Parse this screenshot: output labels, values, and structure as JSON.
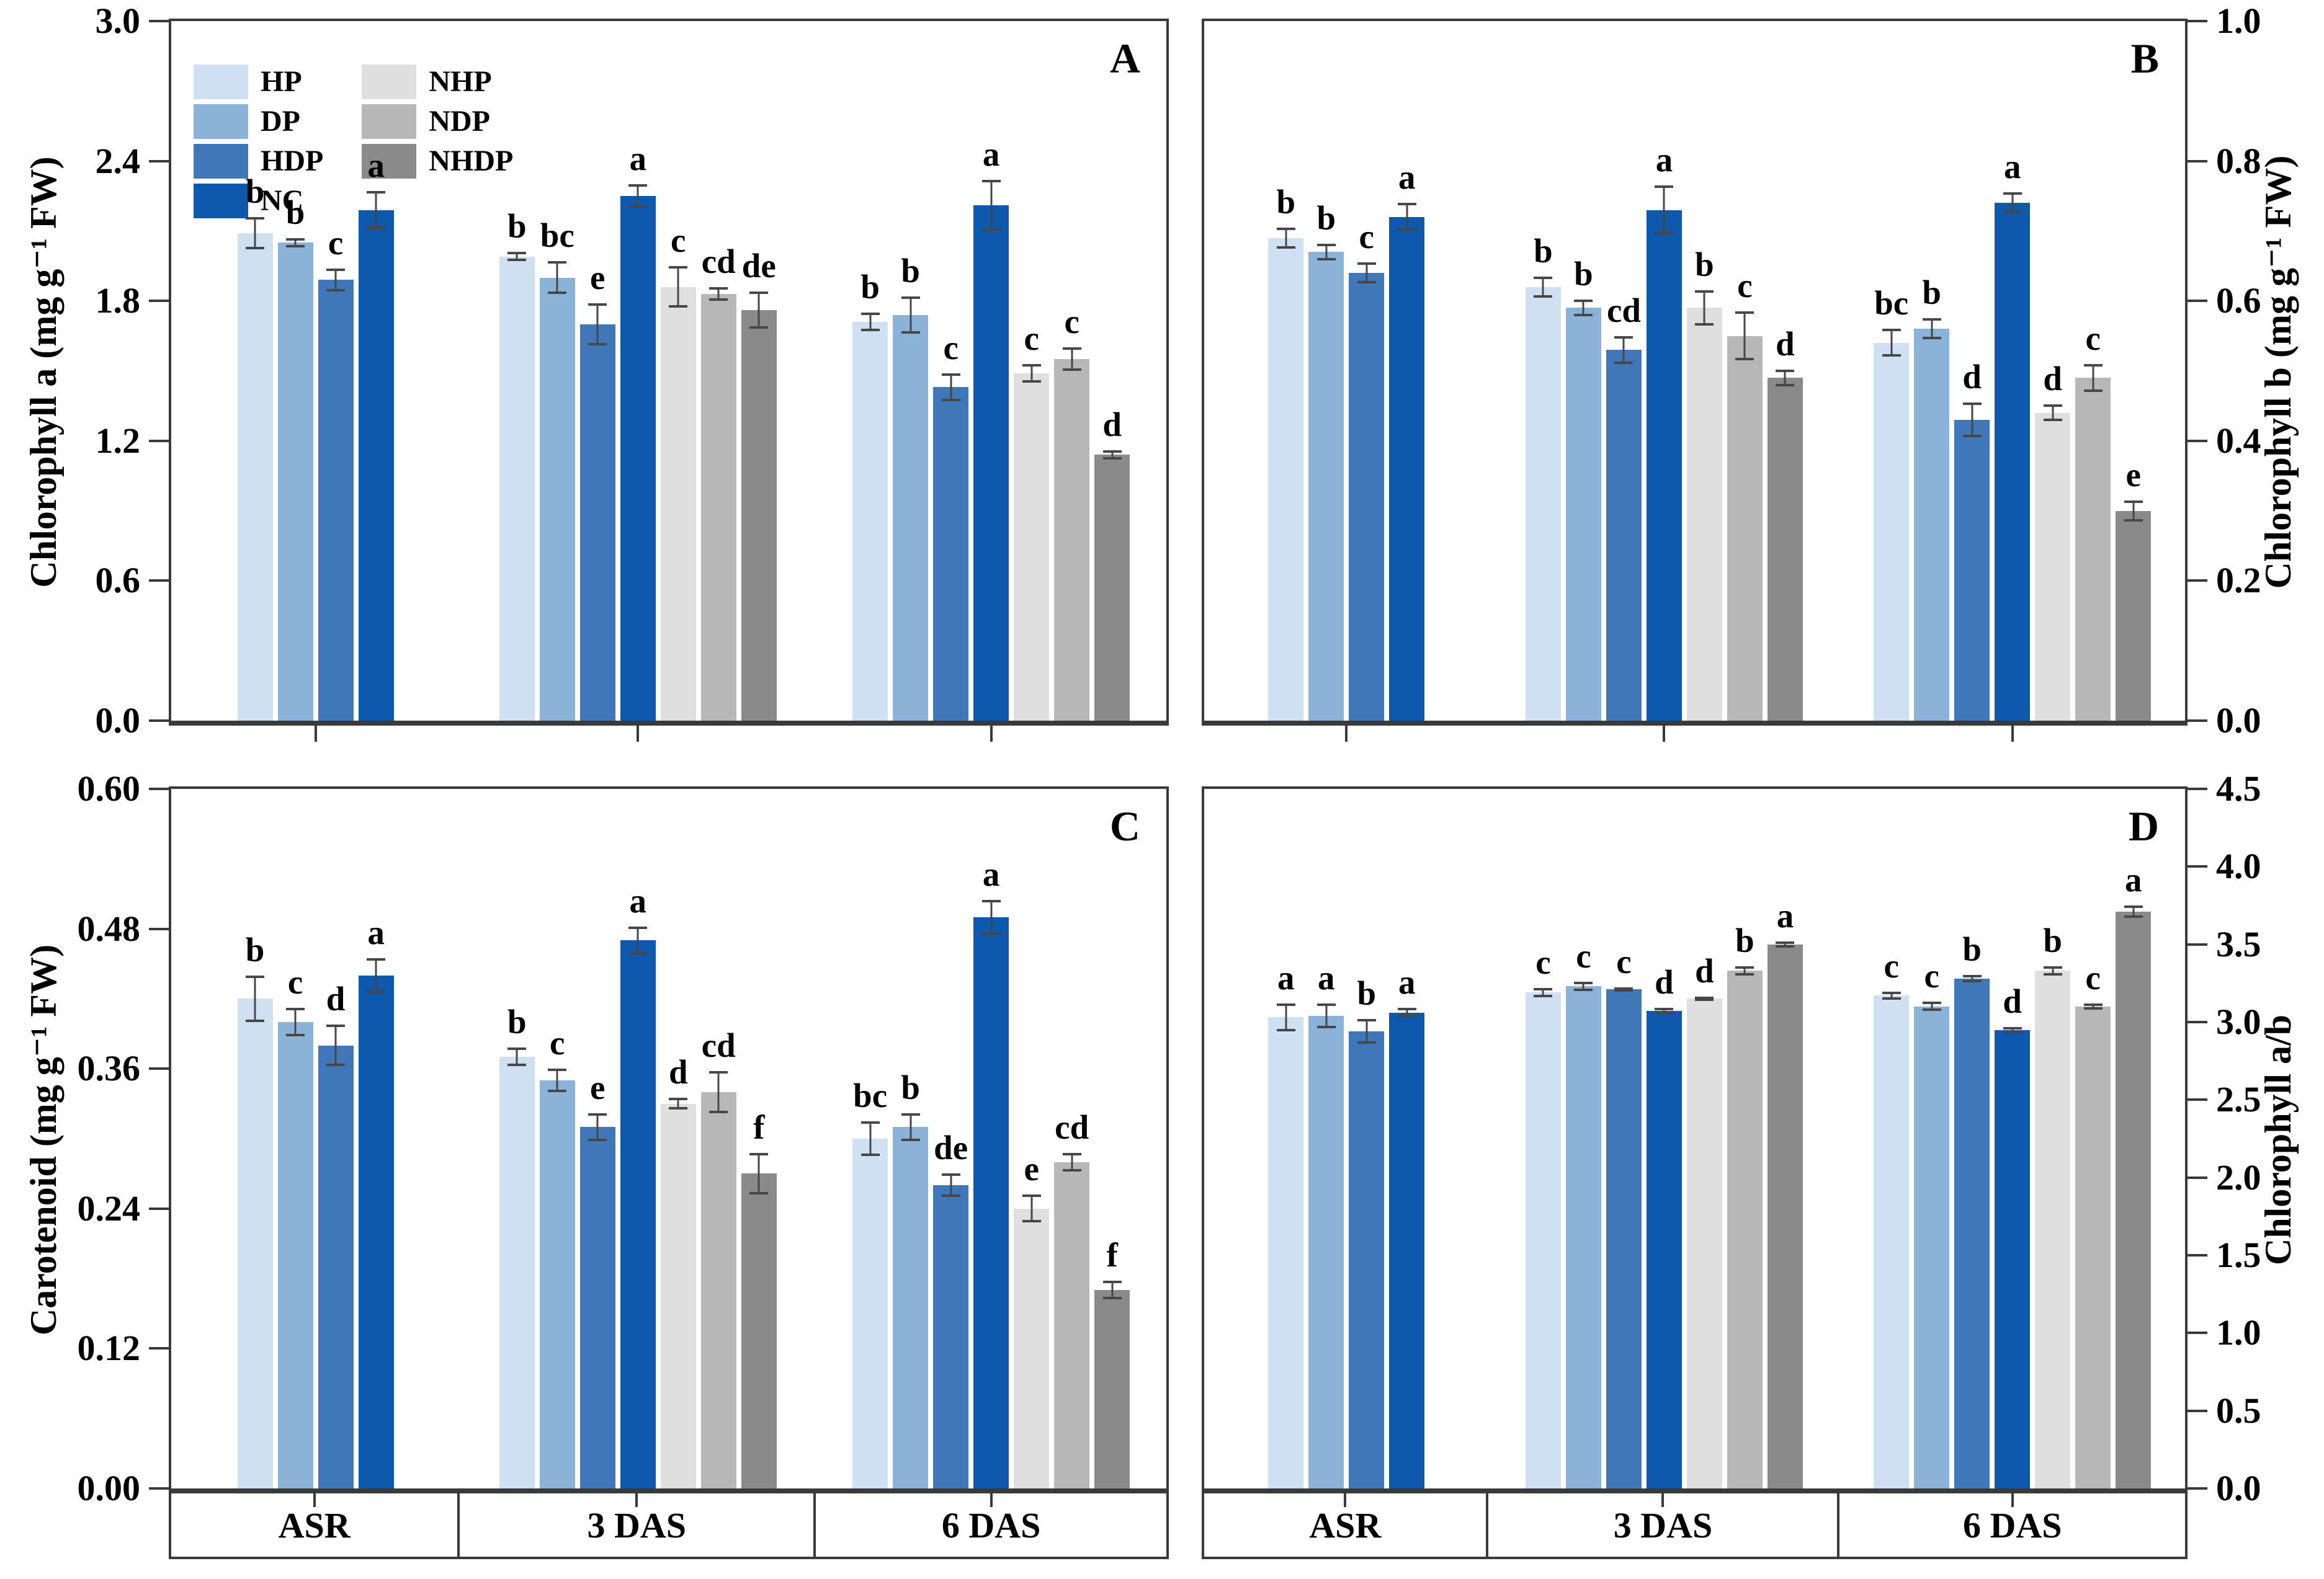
{
  "groups_labels": [
    "ASR",
    "3 DAS",
    "6 DAS"
  ],
  "series_order": [
    "HP",
    "DP",
    "HDP",
    "NC",
    "NHP",
    "NDP",
    "NHDP"
  ],
  "series_colors": {
    "HP": "#cfe0f2",
    "DP": "#8bb3d8",
    "HDP": "#4077b9",
    "NC": "#0e58ad",
    "NHP": "#dfdfdf",
    "NDP": "#b7b7b7",
    "NHDP": "#8a8a8a"
  },
  "axis_color": "#3a3a3a",
  "error_bar_color": "#474747",
  "legend": {
    "columns": [
      [
        {
          "label": "HP",
          "color": "#cfe0f2"
        },
        {
          "label": "DP",
          "color": "#8bb3d8"
        },
        {
          "label": "HDP",
          "color": "#4077b9"
        },
        {
          "label": "NC",
          "color": "#0e58ad"
        }
      ],
      [
        {
          "label": "NHP",
          "color": "#dfdfdf"
        },
        {
          "label": "NDP",
          "color": "#b7b7b7"
        },
        {
          "label": "NHDP",
          "color": "#8a8a8a"
        }
      ]
    ]
  },
  "chart_data": [
    {
      "id": "A",
      "panel_letter": "A",
      "type": "bar",
      "ylabel": "Chlorophyll a (mg g⁻¹ FW)",
      "axis_side": "left",
      "ymin": 0.0,
      "ymax": 3.0,
      "xticks_below": true,
      "yticks": [
        {
          "v": 3.0,
          "label": "3.0"
        },
        {
          "v": 2.4,
          "label": "2.4"
        },
        {
          "v": 1.8,
          "label": "1.8"
        },
        {
          "v": 1.2,
          "label": "1.2"
        },
        {
          "v": 0.6,
          "label": "0.6"
        },
        {
          "v": 0.0,
          "label": "0.0"
        }
      ],
      "categories": [
        "ASR",
        "3 DAS",
        "6 DAS"
      ],
      "groups": [
        {
          "name": "ASR",
          "bars": [
            {
              "series": "HP",
              "value": 2.09,
              "error": 0.07,
              "letter": "b"
            },
            {
              "series": "DP",
              "value": 2.05,
              "error": 0.02,
              "letter": "b"
            },
            {
              "series": "HDP",
              "value": 1.89,
              "error": 0.05,
              "letter": "c"
            },
            {
              "series": "NC",
              "value": 2.19,
              "error": 0.08,
              "letter": "a"
            }
          ]
        },
        {
          "name": "3 DAS",
          "bars": [
            {
              "series": "HP",
              "value": 1.99,
              "error": 0.02,
              "letter": "b"
            },
            {
              "series": "DP",
              "value": 1.9,
              "error": 0.07,
              "letter": "bc"
            },
            {
              "series": "HDP",
              "value": 1.7,
              "error": 0.09,
              "letter": "e"
            },
            {
              "series": "NC",
              "value": 2.25,
              "error": 0.05,
              "letter": "a"
            },
            {
              "series": "NHP",
              "value": 1.86,
              "error": 0.09,
              "letter": "c"
            },
            {
              "series": "NDP",
              "value": 1.83,
              "error": 0.03,
              "letter": "cd"
            },
            {
              "series": "NHDP",
              "value": 1.76,
              "error": 0.08,
              "letter": "de"
            }
          ]
        },
        {
          "name": "6 DAS",
          "bars": [
            {
              "series": "HP",
              "value": 1.71,
              "error": 0.04,
              "letter": "b"
            },
            {
              "series": "DP",
              "value": 1.74,
              "error": 0.08,
              "letter": "b"
            },
            {
              "series": "HDP",
              "value": 1.43,
              "error": 0.06,
              "letter": "c"
            },
            {
              "series": "NC",
              "value": 2.21,
              "error": 0.11,
              "letter": "a"
            },
            {
              "series": "NHP",
              "value": 1.49,
              "error": 0.04,
              "letter": "c"
            },
            {
              "series": "NDP",
              "value": 1.55,
              "error": 0.05,
              "letter": "c"
            },
            {
              "series": "NHDP",
              "value": 1.14,
              "error": 0.02,
              "letter": "d"
            }
          ]
        }
      ]
    },
    {
      "id": "B",
      "panel_letter": "B",
      "type": "bar",
      "ylabel": "Chlorophyll b (mg g⁻¹ FW)",
      "axis_side": "right",
      "ymin": 0.0,
      "ymax": 1.0,
      "xticks_below": true,
      "yticks": [
        {
          "v": 1.0,
          "label": "1.0"
        },
        {
          "v": 0.8,
          "label": "0.8"
        },
        {
          "v": 0.6,
          "label": "0.6"
        },
        {
          "v": 0.4,
          "label": "0.4"
        },
        {
          "v": 0.2,
          "label": "0.2"
        },
        {
          "v": 0.0,
          "label": "0.0"
        }
      ],
      "categories": [
        "ASR",
        "3 DAS",
        "6 DAS"
      ],
      "groups": [
        {
          "name": "ASR",
          "bars": [
            {
              "series": "HP",
              "value": 0.69,
              "error": 0.015,
              "letter": "b"
            },
            {
              "series": "DP",
              "value": 0.67,
              "error": 0.012,
              "letter": "b"
            },
            {
              "series": "HDP",
              "value": 0.64,
              "error": 0.015,
              "letter": "c"
            },
            {
              "series": "NC",
              "value": 0.72,
              "error": 0.02,
              "letter": "a"
            }
          ]
        },
        {
          "name": "3 DAS",
          "bars": [
            {
              "series": "HP",
              "value": 0.62,
              "error": 0.015,
              "letter": "b"
            },
            {
              "series": "DP",
              "value": 0.59,
              "error": 0.012,
              "letter": "b"
            },
            {
              "series": "HDP",
              "value": 0.53,
              "error": 0.02,
              "letter": "cd"
            },
            {
              "series": "NC",
              "value": 0.73,
              "error": 0.035,
              "letter": "a"
            },
            {
              "series": "NHP",
              "value": 0.59,
              "error": 0.025,
              "letter": "b"
            },
            {
              "series": "NDP",
              "value": 0.55,
              "error": 0.035,
              "letter": "c"
            },
            {
              "series": "NHDP",
              "value": 0.49,
              "error": 0.012,
              "letter": "d"
            }
          ]
        },
        {
          "name": "6 DAS",
          "bars": [
            {
              "series": "HP",
              "value": 0.54,
              "error": 0.02,
              "letter": "bc"
            },
            {
              "series": "DP",
              "value": 0.56,
              "error": 0.015,
              "letter": "b"
            },
            {
              "series": "HDP",
              "value": 0.43,
              "error": 0.025,
              "letter": "d"
            },
            {
              "series": "NC",
              "value": 0.74,
              "error": 0.015,
              "letter": "a"
            },
            {
              "series": "NHP",
              "value": 0.44,
              "error": 0.012,
              "letter": "d"
            },
            {
              "series": "NDP",
              "value": 0.49,
              "error": 0.02,
              "letter": "c"
            },
            {
              "series": "NHDP",
              "value": 0.3,
              "error": 0.015,
              "letter": "e"
            }
          ]
        }
      ]
    },
    {
      "id": "C",
      "panel_letter": "C",
      "type": "bar",
      "ylabel": "Carotenoid (mg g⁻¹ FW)",
      "axis_side": "left",
      "ymin": 0.0,
      "ymax": 0.6,
      "xticks_below": false,
      "yticks": [
        {
          "v": 0.6,
          "label": "0.60"
        },
        {
          "v": 0.48,
          "label": "0.48"
        },
        {
          "v": 0.36,
          "label": "0.36"
        },
        {
          "v": 0.24,
          "label": "0.24"
        },
        {
          "v": 0.12,
          "label": "0.12"
        },
        {
          "v": 0.0,
          "label": "0.00"
        }
      ],
      "categories": [
        "ASR",
        "3 DAS",
        "6 DAS"
      ],
      "groups": [
        {
          "name": "ASR",
          "bars": [
            {
              "series": "HP",
              "value": 0.42,
              "error": 0.02,
              "letter": "b"
            },
            {
              "series": "DP",
              "value": 0.4,
              "error": 0.012,
              "letter": "c"
            },
            {
              "series": "HDP",
              "value": 0.38,
              "error": 0.018,
              "letter": "d"
            },
            {
              "series": "NC",
              "value": 0.44,
              "error": 0.015,
              "letter": "a"
            }
          ]
        },
        {
          "name": "3 DAS",
          "bars": [
            {
              "series": "HP",
              "value": 0.37,
              "error": 0.008,
              "letter": "b"
            },
            {
              "series": "DP",
              "value": 0.35,
              "error": 0.01,
              "letter": "c"
            },
            {
              "series": "HDP",
              "value": 0.31,
              "error": 0.012,
              "letter": "e"
            },
            {
              "series": "NC",
              "value": 0.47,
              "error": 0.012,
              "letter": "a"
            },
            {
              "series": "NHP",
              "value": 0.33,
              "error": 0.005,
              "letter": "d"
            },
            {
              "series": "NDP",
              "value": 0.34,
              "error": 0.018,
              "letter": "cd"
            },
            {
              "series": "NHDP",
              "value": 0.27,
              "error": 0.018,
              "letter": "f"
            }
          ]
        },
        {
          "name": "6 DAS",
          "bars": [
            {
              "series": "HP",
              "value": 0.3,
              "error": 0.015,
              "letter": "bc"
            },
            {
              "series": "DP",
              "value": 0.31,
              "error": 0.012,
              "letter": "b"
            },
            {
              "series": "HDP",
              "value": 0.26,
              "error": 0.01,
              "letter": "de"
            },
            {
              "series": "NC",
              "value": 0.49,
              "error": 0.015,
              "letter": "a"
            },
            {
              "series": "NHP",
              "value": 0.24,
              "error": 0.012,
              "letter": "e"
            },
            {
              "series": "NDP",
              "value": 0.28,
              "error": 0.008,
              "letter": "cd"
            },
            {
              "series": "NHDP",
              "value": 0.17,
              "error": 0.008,
              "letter": "f"
            }
          ]
        }
      ]
    },
    {
      "id": "D",
      "panel_letter": "D",
      "type": "bar",
      "ylabel": "Chlorophyll a/b",
      "axis_side": "right",
      "ymin": 0.0,
      "ymax": 4.5,
      "xticks_below": false,
      "yticks": [
        {
          "v": 4.5,
          "label": "4.5"
        },
        {
          "v": 4.0,
          "label": "4.0"
        },
        {
          "v": 3.5,
          "label": "3.5"
        },
        {
          "v": 3.0,
          "label": "3.0"
        },
        {
          "v": 2.5,
          "label": "2.5"
        },
        {
          "v": 2.0,
          "label": "2.0"
        },
        {
          "v": 1.5,
          "label": "1.5"
        },
        {
          "v": 1.0,
          "label": "1.0"
        },
        {
          "v": 0.5,
          "label": "0.5"
        },
        {
          "v": 0.0,
          "label": "0.0"
        }
      ],
      "categories": [
        "ASR",
        "3 DAS",
        "6 DAS"
      ],
      "groups": [
        {
          "name": "ASR",
          "bars": [
            {
              "series": "HP",
              "value": 3.03,
              "error": 0.09,
              "letter": "a"
            },
            {
              "series": "DP",
              "value": 3.04,
              "error": 0.08,
              "letter": "a"
            },
            {
              "series": "HDP",
              "value": 2.94,
              "error": 0.08,
              "letter": "b"
            },
            {
              "series": "NC",
              "value": 3.06,
              "error": 0.03,
              "letter": "a"
            }
          ]
        },
        {
          "name": "3 DAS",
          "bars": [
            {
              "series": "HP",
              "value": 3.19,
              "error": 0.03,
              "letter": "c"
            },
            {
              "series": "DP",
              "value": 3.23,
              "error": 0.03,
              "letter": "c"
            },
            {
              "series": "HDP",
              "value": 3.21,
              "error": 0.015,
              "letter": "c"
            },
            {
              "series": "NC",
              "value": 3.07,
              "error": 0.02,
              "letter": "d"
            },
            {
              "series": "NHP",
              "value": 3.15,
              "error": 0.015,
              "letter": "d"
            },
            {
              "series": "NDP",
              "value": 3.33,
              "error": 0.03,
              "letter": "b"
            },
            {
              "series": "NHDP",
              "value": 3.5,
              "error": 0.02,
              "letter": "a"
            }
          ]
        },
        {
          "name": "6 DAS",
          "bars": [
            {
              "series": "HP",
              "value": 3.17,
              "error": 0.025,
              "letter": "c"
            },
            {
              "series": "DP",
              "value": 3.1,
              "error": 0.03,
              "letter": "c"
            },
            {
              "series": "HDP",
              "value": 3.28,
              "error": 0.025,
              "letter": "b"
            },
            {
              "series": "NC",
              "value": 2.95,
              "error": 0.02,
              "letter": "d"
            },
            {
              "series": "NHP",
              "value": 3.33,
              "error": 0.03,
              "letter": "b"
            },
            {
              "series": "NDP",
              "value": 3.1,
              "error": 0.02,
              "letter": "c"
            },
            {
              "series": "NHDP",
              "value": 3.71,
              "error": 0.04,
              "letter": "a"
            }
          ]
        }
      ]
    }
  ]
}
